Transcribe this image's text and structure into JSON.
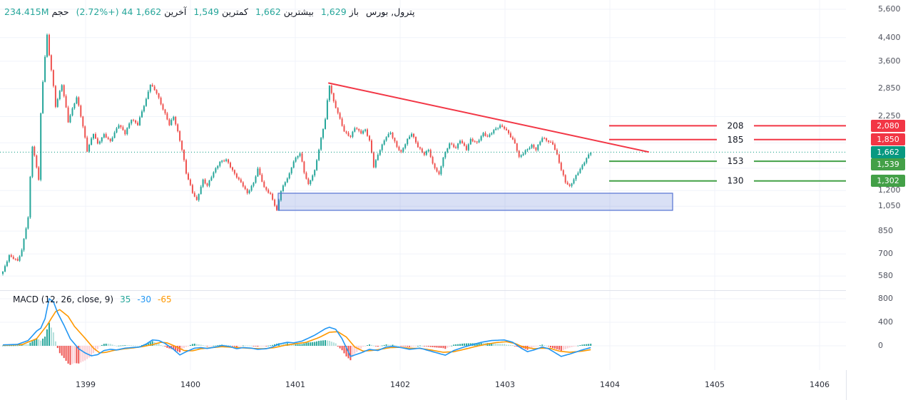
{
  "header": {
    "symbol": "پترول, بورس",
    "fields": [
      {
        "label": "باز",
        "value": "1,629"
      },
      {
        "label": "بیشترین",
        "value": "1,662"
      },
      {
        "label": "کمترین",
        "value": "1,549"
      },
      {
        "label": "آخرین",
        "value": "1,662",
        "change": "44 (+2.72%)"
      },
      {
        "label": "حجم",
        "value": "234.415M"
      }
    ],
    "value_color": "#26a69a",
    "label_color": "#131722"
  },
  "macd_legend": {
    "title": "MACD (12, 26, close, 9)",
    "values": [
      {
        "text": "35",
        "color": "#26a69a"
      },
      {
        "text": "-30",
        "color": "#2196f3"
      },
      {
        "text": "-65",
        "color": "#ff9800"
      }
    ]
  },
  "chart_data": {
    "type": "candlestick_with_macd",
    "title": "پترول, بورس",
    "price_scale": {
      "type": "log",
      "ticks": [
        {
          "value": 5600,
          "text": "5,600"
        },
        {
          "value": 4400,
          "text": "4,400"
        },
        {
          "value": 3600,
          "text": "3,600"
        },
        {
          "value": 2850,
          "text": "2,850"
        },
        {
          "value": 2250,
          "text": "2,250"
        },
        {
          "value": 1200,
          "text": "1,200"
        },
        {
          "value": 1050,
          "text": "1,050"
        },
        {
          "value": 850,
          "text": "850"
        },
        {
          "value": 700,
          "text": "700"
        },
        {
          "value": 580,
          "text": "580"
        }
      ],
      "grid_only_values": [
        1800,
        1450
      ]
    },
    "time_scale": {
      "year_labels": [
        "1399",
        "1400",
        "1401",
        "1402",
        "1403",
        "1404",
        "1405",
        "1406"
      ]
    },
    "candles": {
      "up_color": "#26a69a",
      "down_color": "#ef5350",
      "bars_total": 280,
      "close_path_anchors": [
        [
          0,
          600
        ],
        [
          3,
          690
        ],
        [
          7,
          660
        ],
        [
          9,
          720
        ],
        [
          12,
          950
        ],
        [
          14,
          1750
        ],
        [
          17,
          1320
        ],
        [
          18,
          2300
        ],
        [
          21,
          4480
        ],
        [
          22,
          3800
        ],
        [
          25,
          2450
        ],
        [
          28,
          2950
        ],
        [
          31,
          2150
        ],
        [
          35,
          2650
        ],
        [
          40,
          1680
        ],
        [
          43,
          1950
        ],
        [
          45,
          1780
        ],
        [
          48,
          1930
        ],
        [
          51,
          1820
        ],
        [
          55,
          2100
        ],
        [
          58,
          1950
        ],
        [
          61,
          2200
        ],
        [
          64,
          2100
        ],
        [
          68,
          2600
        ],
        [
          70,
          2960
        ],
        [
          73,
          2750
        ],
        [
          75,
          2500
        ],
        [
          79,
          2100
        ],
        [
          81,
          2250
        ],
        [
          85,
          1700
        ],
        [
          87,
          1390
        ],
        [
          90,
          1180
        ],
        [
          92,
          1100
        ],
        [
          95,
          1310
        ],
        [
          97,
          1250
        ],
        [
          100,
          1400
        ],
        [
          103,
          1530
        ],
        [
          106,
          1560
        ],
        [
          110,
          1380
        ],
        [
          114,
          1250
        ],
        [
          116,
          1170
        ],
        [
          119,
          1280
        ],
        [
          121,
          1440
        ],
        [
          124,
          1230
        ],
        [
          127,
          1160
        ],
        [
          130,
          1010
        ],
        [
          132,
          1200
        ],
        [
          136,
          1380
        ],
        [
          138,
          1540
        ],
        [
          141,
          1650
        ],
        [
          143,
          1400
        ],
        [
          145,
          1260
        ],
        [
          148,
          1420
        ],
        [
          150,
          1700
        ],
        [
          153,
          2200
        ],
        [
          155,
          2940
        ],
        [
          157,
          2550
        ],
        [
          160,
          2200
        ],
        [
          162,
          1980
        ],
        [
          165,
          1890
        ],
        [
          167,
          2050
        ],
        [
          170,
          1960
        ],
        [
          172,
          2010
        ],
        [
          174,
          1830
        ],
        [
          176,
          1470
        ],
        [
          179,
          1700
        ],
        [
          182,
          1900
        ],
        [
          184,
          1960
        ],
        [
          187,
          1740
        ],
        [
          189,
          1660
        ],
        [
          192,
          1850
        ],
        [
          194,
          1950
        ],
        [
          197,
          1740
        ],
        [
          200,
          1630
        ],
        [
          202,
          1700
        ],
        [
          204,
          1500
        ],
        [
          207,
          1370
        ],
        [
          209,
          1590
        ],
        [
          212,
          1790
        ],
        [
          215,
          1720
        ],
        [
          217,
          1840
        ],
        [
          220,
          1700
        ],
        [
          222,
          1850
        ],
        [
          225,
          1800
        ],
        [
          228,
          1950
        ],
        [
          230,
          1890
        ],
        [
          233,
          2000
        ],
        [
          236,
          2080
        ],
        [
          238,
          2040
        ],
        [
          240,
          1950
        ],
        [
          243,
          1790
        ],
        [
          245,
          1590
        ],
        [
          248,
          1680
        ],
        [
          251,
          1760
        ],
        [
          253,
          1700
        ],
        [
          256,
          1880
        ],
        [
          258,
          1840
        ],
        [
          261,
          1780
        ],
        [
          263,
          1620
        ],
        [
          265,
          1430
        ],
        [
          267,
          1290
        ],
        [
          269,
          1240
        ],
        [
          271,
          1320
        ],
        [
          273,
          1400
        ],
        [
          275,
          1480
        ],
        [
          277,
          1580
        ],
        [
          279,
          1662
        ]
      ]
    },
    "last_price": {
      "price": 1662,
      "axis_label": "1,662",
      "color": "#089981",
      "line_style": "dotted"
    },
    "levels": [
      {
        "price": 2080,
        "axis_label": "2,080",
        "line_label": "208",
        "color": "#f23645"
      },
      {
        "price": 1850,
        "axis_label": "1,850",
        "line_label": "185",
        "color": "#f23645"
      },
      {
        "price": 1539,
        "axis_label": "1,539",
        "line_label": "153",
        "color": "#43a047"
      },
      {
        "price": 1302,
        "axis_label": "1,302",
        "line_label": "130",
        "color": "#43a047"
      }
    ],
    "levels_from_year": 1403.99,
    "trendline": {
      "from": {
        "year": 1401.32,
        "price": 2990
      },
      "to": {
        "year": 1404.37,
        "price": 1665
      },
      "color": "#f23645"
    },
    "support_zone": {
      "from_year": 1400.84,
      "to_year": 1404.6,
      "price_top": 1170,
      "price_bottom": 1010,
      "border_color": "#5472d3",
      "fill_color": "rgba(84,114,211,0.22)"
    },
    "macd": {
      "params": {
        "fast": 12,
        "slow": 26,
        "source": "close",
        "signal": 9
      },
      "scale_ticks": [
        {
          "value": 800,
          "text": "800"
        },
        {
          "value": 400,
          "text": "400"
        },
        {
          "value": 0,
          "text": "0"
        }
      ],
      "macd_line_anchors": [
        [
          0,
          15
        ],
        [
          7,
          25
        ],
        [
          12,
          90
        ],
        [
          16,
          250
        ],
        [
          18,
          300
        ],
        [
          20,
          460
        ],
        [
          22,
          800
        ],
        [
          24,
          750
        ],
        [
          26,
          560
        ],
        [
          29,
          350
        ],
        [
          32,
          120
        ],
        [
          36,
          -50
        ],
        [
          39,
          -120
        ],
        [
          42,
          -170
        ],
        [
          45,
          -150
        ],
        [
          48,
          -80
        ],
        [
          51,
          -60
        ],
        [
          54,
          -70
        ],
        [
          58,
          -40
        ],
        [
          61,
          -30
        ],
        [
          65,
          -20
        ],
        [
          68,
          30
        ],
        [
          71,
          100
        ],
        [
          74,
          90
        ],
        [
          77,
          40
        ],
        [
          81,
          -60
        ],
        [
          84,
          -155
        ],
        [
          87,
          -100
        ],
        [
          91,
          -40
        ],
        [
          94,
          -30
        ],
        [
          97,
          -45
        ],
        [
          101,
          -20
        ],
        [
          104,
          5
        ],
        [
          108,
          -15
        ],
        [
          111,
          -50
        ],
        [
          114,
          -30
        ],
        [
          118,
          -40
        ],
        [
          121,
          -60
        ],
        [
          125,
          -50
        ],
        [
          128,
          -20
        ],
        [
          131,
          30
        ],
        [
          135,
          60
        ],
        [
          138,
          50
        ],
        [
          142,
          80
        ],
        [
          148,
          180
        ],
        [
          153,
          290
        ],
        [
          155,
          315
        ],
        [
          158,
          280
        ],
        [
          161,
          120
        ],
        [
          165,
          -180
        ],
        [
          170,
          -120
        ],
        [
          174,
          -60
        ],
        [
          178,
          -80
        ],
        [
          182,
          -20
        ],
        [
          185,
          -10
        ],
        [
          189,
          -30
        ],
        [
          193,
          -60
        ],
        [
          198,
          -40
        ],
        [
          203,
          -90
        ],
        [
          210,
          -160
        ],
        [
          214,
          -80
        ],
        [
          219,
          -20
        ],
        [
          223,
          20
        ],
        [
          227,
          60
        ],
        [
          232,
          90
        ],
        [
          238,
          100
        ],
        [
          242,
          60
        ],
        [
          246,
          -40
        ],
        [
          249,
          -100
        ],
        [
          253,
          -60
        ],
        [
          256,
          -20
        ],
        [
          259,
          -50
        ],
        [
          265,
          -180
        ],
        [
          269,
          -140
        ],
        [
          275,
          -70
        ],
        [
          279,
          -30
        ]
      ],
      "signal_line_anchors": [
        [
          0,
          10
        ],
        [
          9,
          20
        ],
        [
          16,
          120
        ],
        [
          21,
          350
        ],
        [
          25,
          580
        ],
        [
          27,
          615
        ],
        [
          31,
          500
        ],
        [
          34,
          330
        ],
        [
          39,
          130
        ],
        [
          43,
          -40
        ],
        [
          46,
          -120
        ],
        [
          49,
          -110
        ],
        [
          53,
          -75
        ],
        [
          58,
          -50
        ],
        [
          62,
          -35
        ],
        [
          66,
          -15
        ],
        [
          71,
          20
        ],
        [
          75,
          60
        ],
        [
          78,
          50
        ],
        [
          82,
          -10
        ],
        [
          86,
          -80
        ],
        [
          90,
          -85
        ],
        [
          94,
          -50
        ],
        [
          98,
          -35
        ],
        [
          104,
          -15
        ],
        [
          109,
          -25
        ],
        [
          114,
          -35
        ],
        [
          119,
          -45
        ],
        [
          124,
          -50
        ],
        [
          129,
          -30
        ],
        [
          134,
          10
        ],
        [
          139,
          35
        ],
        [
          144,
          60
        ],
        [
          150,
          140
        ],
        [
          155,
          230
        ],
        [
          159,
          240
        ],
        [
          163,
          150
        ],
        [
          167,
          -20
        ],
        [
          171,
          -90
        ],
        [
          175,
          -80
        ],
        [
          180,
          -55
        ],
        [
          184,
          -30
        ],
        [
          188,
          -25
        ],
        [
          193,
          -40
        ],
        [
          198,
          -45
        ],
        [
          203,
          -70
        ],
        [
          209,
          -110
        ],
        [
          214,
          -100
        ],
        [
          219,
          -60
        ],
        [
          224,
          -15
        ],
        [
          229,
          25
        ],
        [
          234,
          55
        ],
        [
          239,
          70
        ],
        [
          243,
          40
        ],
        [
          247,
          -20
        ],
        [
          252,
          -50
        ],
        [
          256,
          -40
        ],
        [
          260,
          -45
        ],
        [
          264,
          -90
        ],
        [
          269,
          -110
        ],
        [
          275,
          -90
        ],
        [
          279,
          -65
        ]
      ],
      "colors": {
        "macd_line": "#2196f3",
        "signal_line": "#ff9800",
        "hist_grow_above": "#26a69a",
        "hist_fall_above": "#b2dfdb",
        "hist_fall_below": "#ef5350",
        "hist_grow_below": "#fbcdd2"
      }
    }
  }
}
